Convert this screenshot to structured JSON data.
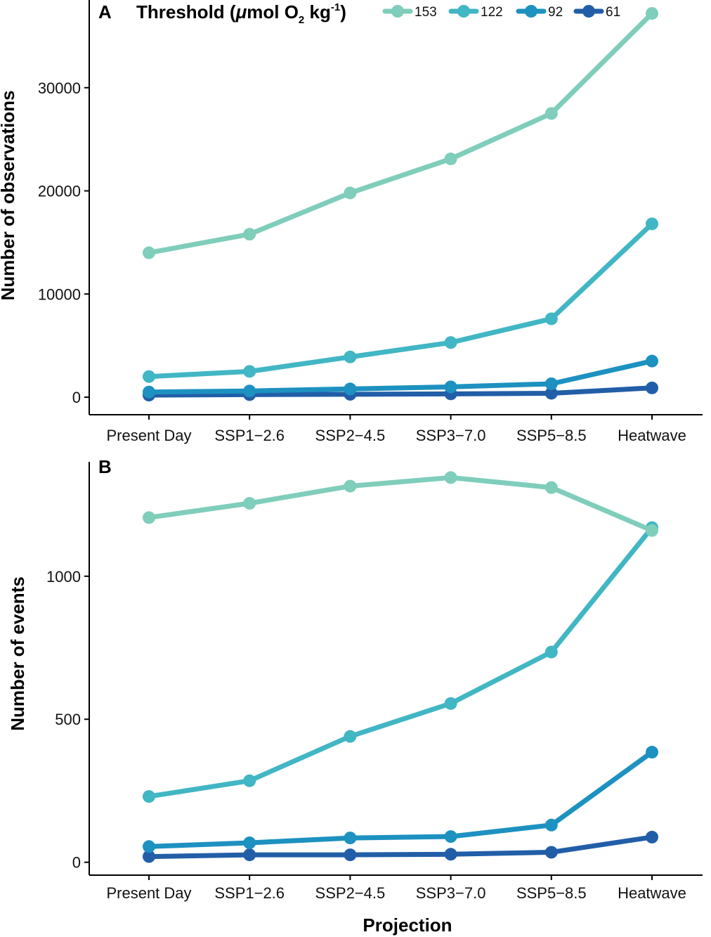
{
  "legend": {
    "title_main": "Threshold (",
    "title_mu": "μ",
    "title_mid": "mol O",
    "title_sub": "2",
    "title_kg": " kg",
    "title_sup": "-1",
    "title_end": ")"
  },
  "colors": {
    "153": "#7fcdbb",
    "122": "#41b6c4",
    "92": "#1d91c0",
    "61": "#225ea8"
  },
  "chart_data": [
    {
      "type": "line",
      "panel": "A",
      "xlabel": "",
      "ylabel": "Number of observations",
      "categories": [
        "Present Day",
        "SSP1−2.6",
        "SSP2−4.5",
        "SSP3−7.0",
        "SSP5−8.5",
        "Heatwave"
      ],
      "yticks": [
        0,
        10000,
        20000,
        30000
      ],
      "ytick_labels": [
        "0",
        "10000",
        "20000",
        "30000"
      ],
      "ylim": [
        -1700,
        38500
      ],
      "series": [
        {
          "name": "153",
          "values": [
            14000,
            15800,
            19800,
            23100,
            27500,
            37200
          ]
        },
        {
          "name": "122",
          "values": [
            2000,
            2500,
            3900,
            5300,
            7600,
            16800
          ]
        },
        {
          "name": "92",
          "values": [
            500,
            600,
            800,
            1000,
            1300,
            3500
          ]
        },
        {
          "name": "61",
          "values": [
            200,
            250,
            280,
            320,
            380,
            900
          ]
        }
      ]
    },
    {
      "type": "line",
      "panel": "B",
      "xlabel": "Projection",
      "ylabel": "Number of events",
      "categories": [
        "Present Day",
        "SSP1−2.6",
        "SSP2−4.5",
        "SSP3−7.0",
        "SSP5−8.5",
        "Heatwave"
      ],
      "yticks": [
        0,
        500,
        1000
      ],
      "ytick_labels": [
        "0",
        "500",
        "1000"
      ],
      "ylim": [
        -45,
        1400
      ],
      "series": [
        {
          "name": "153",
          "values": [
            1205,
            1255,
            1315,
            1345,
            1310,
            1160
          ]
        },
        {
          "name": "122",
          "values": [
            230,
            285,
            440,
            555,
            735,
            1170
          ]
        },
        {
          "name": "92",
          "values": [
            55,
            68,
            85,
            90,
            130,
            385
          ]
        },
        {
          "name": "61",
          "values": [
            20,
            26,
            26,
            28,
            35,
            88
          ]
        }
      ]
    }
  ]
}
